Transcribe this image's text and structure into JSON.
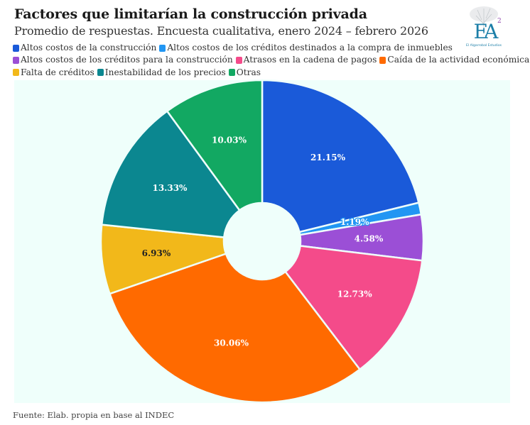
{
  "header": {
    "title": "Factores que limitarían la construcción privada",
    "subtitle": "Promedio de respuestas. Encuesta cualitativa, enero 2024 – febrero 2026"
  },
  "logo": {
    "monogram": "EA",
    "superscript": "2",
    "caption": "El Algarrobal Estudios"
  },
  "footer": {
    "source": "Fuente: Elab. propia en base al INDEC"
  },
  "chart_data": {
    "type": "pie",
    "variant": "donut",
    "title": "Factores que limitarían la construcción privada",
    "subtitle": "Promedio de respuestas. Encuesta cualitativa, enero 2024 – febrero 2026",
    "legend_position": "top",
    "start": "12 o'clock, clockwise",
    "categories": [
      "Altos costos de la construcción",
      "Altos costos de los créditos destinados a la compra de inmuebles",
      "Altos costos de los créditos para la construcción",
      "Atrasos en la cadena de pagos",
      "Caída de la actividad económica",
      "Falta de créditos",
      "Inestabilidad de los precios",
      "Otras"
    ],
    "values": [
      21.15,
      1.19,
      4.58,
      12.73,
      30.06,
      6.93,
      13.33,
      10.03
    ],
    "labels": [
      "21.15%",
      "1.19%",
      "4.58%",
      "12.73%",
      "30.06%",
      "6.93%",
      "13.33%",
      "10.03%"
    ],
    "colors": [
      "#1a5ad9",
      "#2196f3",
      "#9b4fd6",
      "#f44b8a",
      "#ff6a00",
      "#f2b81a",
      "#0b8790",
      "#12a862"
    ],
    "label_colors": [
      "#ffffff",
      "#ffffff",
      "#ffffff",
      "#ffffff",
      "#ffffff",
      "#222222",
      "#ffffff",
      "#ffffff"
    ],
    "unit": "%",
    "source": "Fuente: Elab. propia en base al INDEC"
  },
  "legend": {
    "lines": [
      [
        0,
        1
      ],
      [
        2,
        3,
        4
      ],
      [
        5,
        6,
        7
      ]
    ]
  }
}
